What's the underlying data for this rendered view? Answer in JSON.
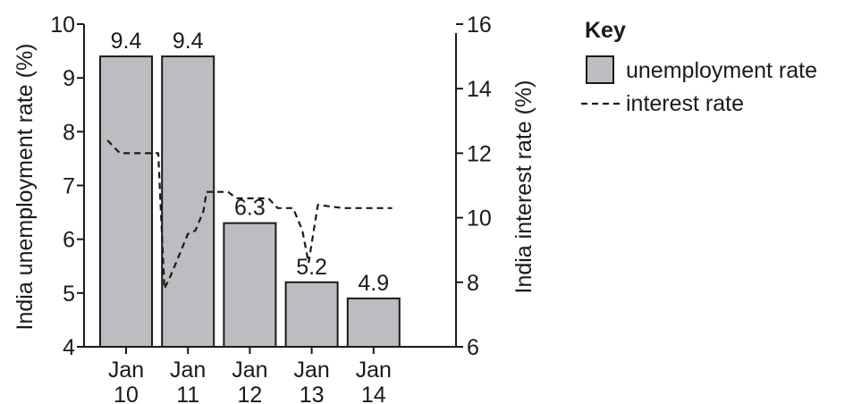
{
  "chart_data": {
    "type": "bar",
    "categories": [
      {
        "line1": "Jan",
        "line2": "10"
      },
      {
        "line1": "Jan",
        "line2": "11"
      },
      {
        "line1": "Jan",
        "line2": "12"
      },
      {
        "line1": "Jan",
        "line2": "13"
      },
      {
        "line1": "Jan",
        "line2": "14"
      }
    ],
    "series": [
      {
        "name": "unemployment rate",
        "kind": "bar",
        "axis": "left",
        "values": [
          9.4,
          9.4,
          6.3,
          5.2,
          4.9
        ],
        "labels": [
          "9.4",
          "9.4",
          "6.3",
          "5.2",
          "4.9"
        ]
      },
      {
        "name": "interest rate",
        "kind": "line",
        "axis": "right",
        "style": "dashed",
        "points": [
          [
            -0.3,
            12.4
          ],
          [
            -0.1,
            12.0
          ],
          [
            0.52,
            12.0
          ],
          [
            0.62,
            7.8
          ],
          [
            0.72,
            8.2
          ],
          [
            0.85,
            8.8
          ],
          [
            1.0,
            9.5
          ],
          [
            1.12,
            9.6
          ],
          [
            1.25,
            10.2
          ],
          [
            1.3,
            10.8
          ],
          [
            1.65,
            10.8
          ],
          [
            1.78,
            10.6
          ],
          [
            2.3,
            10.6
          ],
          [
            2.45,
            10.3
          ],
          [
            2.7,
            10.3
          ],
          [
            2.85,
            9.6
          ],
          [
            2.95,
            8.6
          ],
          [
            3.1,
            10.4
          ],
          [
            3.5,
            10.3
          ],
          [
            4.3,
            10.3
          ]
        ]
      }
    ],
    "left_axis": {
      "label": "India unemployment rate (%)",
      "min": 4,
      "max": 10,
      "ticks": [
        4,
        5,
        6,
        7,
        8,
        9,
        10
      ]
    },
    "right_axis": {
      "label": "India interest rate (%)",
      "min": 6,
      "max": 16,
      "ticks": [
        6,
        8,
        10,
        12,
        14,
        16
      ]
    },
    "legend": {
      "title": "Key",
      "position": "top-right",
      "items": [
        {
          "label": "unemployment rate",
          "swatch": "bar"
        },
        {
          "label": "interest rate",
          "swatch": "dashed-line"
        }
      ]
    },
    "grid": false,
    "colors": {
      "bar_fill": "#bcbdc1",
      "bar_stroke": "#1a1a1a",
      "line": "#1a1a1a",
      "axis": "#1a1a1a"
    }
  }
}
